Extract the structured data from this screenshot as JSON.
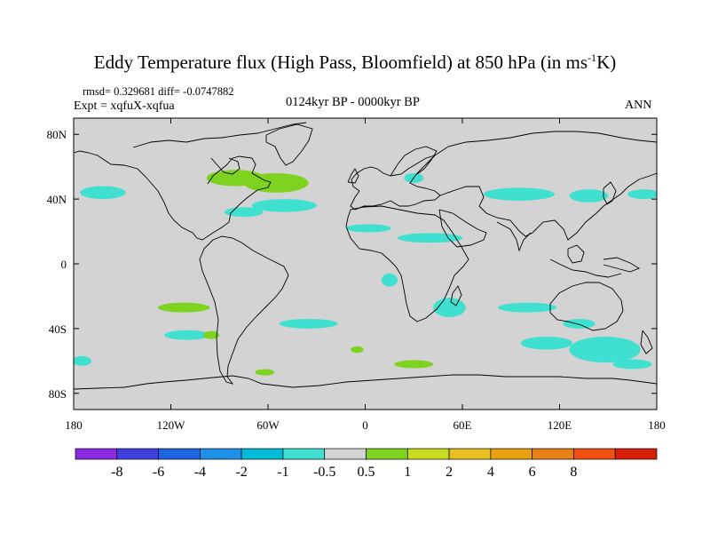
{
  "title": {
    "main": "Eddy Temperature flux (High Pass, Bloomfield) at 850 hPa (in ms",
    "superscript": "-1",
    "suffix": "K)"
  },
  "stats": "rmsd= 0.329681 diff= -0.0747882",
  "experiment": "Expt = xqfuX-xqfua",
  "period": "0124kyr BP - 0000kyr BP",
  "season": "ANN",
  "map": {
    "projection": "cylindrical-equidistant",
    "lon_range": [
      -180,
      180
    ],
    "lat_range": [
      -90,
      90
    ],
    "land_color": "#d3d3d3",
    "coast_color": "#000000"
  },
  "axes": {
    "y_labels": [
      {
        "lat": 80,
        "label": "80N"
      },
      {
        "lat": 40,
        "label": "40N"
      },
      {
        "lat": 0,
        "label": "0"
      },
      {
        "lat": -40,
        "label": "40S"
      },
      {
        "lat": -80,
        "label": "80S"
      }
    ],
    "x_labels": [
      {
        "lon": -180,
        "label": "180"
      },
      {
        "lon": -120,
        "label": "120W"
      },
      {
        "lon": -60,
        "label": "60W"
      },
      {
        "lon": 0,
        "label": "0"
      },
      {
        "lon": 60,
        "label": "60E"
      },
      {
        "lon": 120,
        "label": "120E"
      },
      {
        "lon": 180,
        "label": "180"
      }
    ]
  },
  "colorbar": {
    "colors": [
      "#8a2be2",
      "#4040e0",
      "#1c64e0",
      "#1e90e8",
      "#00bcd8",
      "#40e0d0",
      "#d3d3d3",
      "#7ed321",
      "#c8dc20",
      "#e8c020",
      "#e8a010",
      "#e88018",
      "#f05010",
      "#d81e05"
    ],
    "labels": [
      "-8",
      "-6",
      "-4",
      "-2",
      "-1",
      "-0.5",
      "0.5",
      "1",
      "2",
      "4",
      "6",
      "8"
    ]
  },
  "anomalies": [
    {
      "kind": "neg",
      "cx": -162,
      "cy": 44,
      "rx": 14,
      "ry": 4
    },
    {
      "kind": "pos",
      "cx": -80,
      "cy": 53,
      "rx": 18,
      "ry": 5
    },
    {
      "kind": "pos",
      "cx": -55,
      "cy": 50,
      "rx": 20,
      "ry": 6
    },
    {
      "kind": "neg",
      "cx": -50,
      "cy": 36,
      "rx": 20,
      "ry": 4
    },
    {
      "kind": "neg",
      "cx": -75,
      "cy": 32,
      "rx": 12,
      "ry": 3
    },
    {
      "kind": "neg",
      "cx": 30,
      "cy": 53,
      "rx": 6,
      "ry": 3
    },
    {
      "kind": "neg",
      "cx": 2,
      "cy": 22,
      "rx": 14,
      "ry": 2.5
    },
    {
      "kind": "neg",
      "cx": 40,
      "cy": 16,
      "rx": 20,
      "ry": 3
    },
    {
      "kind": "neg",
      "cx": 95,
      "cy": 43,
      "rx": 22,
      "ry": 4
    },
    {
      "kind": "neg",
      "cx": 138,
      "cy": 42,
      "rx": 12,
      "ry": 4
    },
    {
      "kind": "neg",
      "cx": 172,
      "cy": 43,
      "rx": 10,
      "ry": 3
    },
    {
      "kind": "neg",
      "cx": 15,
      "cy": -10,
      "rx": 5,
      "ry": 4
    },
    {
      "kind": "neg",
      "cx": 52,
      "cy": -27,
      "rx": 10,
      "ry": 6
    },
    {
      "kind": "neg",
      "cx": 100,
      "cy": -27,
      "rx": 18,
      "ry": 3
    },
    {
      "kind": "neg",
      "cx": 132,
      "cy": -37,
      "rx": 10,
      "ry": 3
    },
    {
      "kind": "pos",
      "cx": -112,
      "cy": -27,
      "rx": 16,
      "ry": 3
    },
    {
      "kind": "neg",
      "cx": -110,
      "cy": -44,
      "rx": 14,
      "ry": 3
    },
    {
      "kind": "neg",
      "cx": -35,
      "cy": -37,
      "rx": 18,
      "ry": 3
    },
    {
      "kind": "pos",
      "cx": -95,
      "cy": -44,
      "rx": 5,
      "ry": 2.5
    },
    {
      "kind": "pos",
      "cx": -5,
      "cy": -53,
      "rx": 4,
      "ry": 2
    },
    {
      "kind": "neg",
      "cx": 148,
      "cy": -53,
      "rx": 22,
      "ry": 8
    },
    {
      "kind": "neg",
      "cx": 112,
      "cy": -49,
      "rx": 16,
      "ry": 4
    },
    {
      "kind": "neg",
      "cx": 165,
      "cy": -62,
      "rx": 12,
      "ry": 3
    },
    {
      "kind": "neg",
      "cx": -175,
      "cy": -60,
      "rx": 6,
      "ry": 3
    },
    {
      "kind": "pos",
      "cx": 30,
      "cy": -62,
      "rx": 12,
      "ry": 2.5
    },
    {
      "kind": "pos",
      "cx": -62,
      "cy": -67,
      "rx": 6,
      "ry": 2
    }
  ]
}
